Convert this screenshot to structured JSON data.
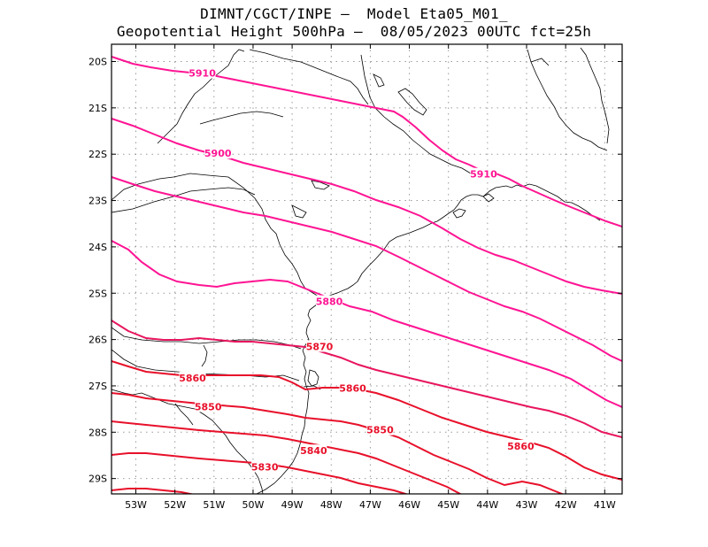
{
  "title": {
    "line1": "DIMNT/CGCT/INPE –  Model Eta05_M01_",
    "line2": "Geopotential Height 500hPa –  08/05/2023 00UTC fct=25h"
  },
  "axes": {
    "lat_labels": [
      "20S",
      "21S",
      "22S",
      "23S",
      "24S",
      "25S",
      "26S",
      "27S",
      "28S",
      "29S"
    ],
    "lon_labels": [
      "53W",
      "52W",
      "51W",
      "50W",
      "49W",
      "48W",
      "47W",
      "46W",
      "45W",
      "44W",
      "43W",
      "42W",
      "41W"
    ],
    "lat_range": [
      -29.4,
      -19.9
    ],
    "lon_range": [
      -53.6,
      -40.5
    ],
    "grid": "dotted"
  },
  "colors": {
    "contour_high": "#ff1493",
    "contour_low": "#e8102a",
    "coast": "#000000",
    "grid": "#9a9a9a"
  },
  "contour_labels": [
    {
      "text": "5910",
      "lon": -51.3,
      "lat": -20.25,
      "level": 5910
    },
    {
      "text": "5900",
      "lon": -50.9,
      "lat": -21.98,
      "level": 5900
    },
    {
      "text": "5910",
      "lon": -44.1,
      "lat": -22.43,
      "level": 5910
    },
    {
      "text": "5880",
      "lon": -48.05,
      "lat": -25.18,
      "level": 5880
    },
    {
      "text": "5870",
      "lon": -48.3,
      "lat": -26.15,
      "level": 5870
    },
    {
      "text": "5860",
      "lon": -51.55,
      "lat": -26.83,
      "level": 5860
    },
    {
      "text": "5860",
      "lon": -47.45,
      "lat": -27.05,
      "level": 5860
    },
    {
      "text": "5850",
      "lon": -51.15,
      "lat": -27.45,
      "level": 5850
    },
    {
      "text": "5850",
      "lon": -46.75,
      "lat": -27.95,
      "level": 5850
    },
    {
      "text": "5860",
      "lon": -43.15,
      "lat": -28.3,
      "level": 5860
    },
    {
      "text": "5840",
      "lon": -48.45,
      "lat": -28.4,
      "level": 5840
    },
    {
      "text": "5830",
      "lon": -49.7,
      "lat": -28.75,
      "level": 5830
    }
  ]
}
